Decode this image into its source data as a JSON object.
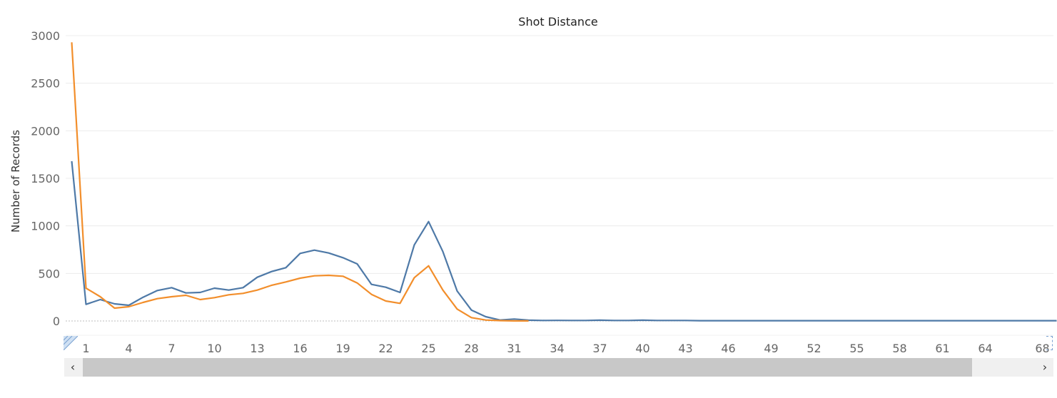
{
  "chart_data": {
    "type": "line",
    "title": "Shot Distance",
    "xlabel": "",
    "ylabel": "Number of Records",
    "ylim": [
      0,
      3000
    ],
    "yticks": [
      0,
      500,
      1000,
      1500,
      2000,
      2500,
      3000
    ],
    "xticks": [
      1,
      4,
      7,
      10,
      13,
      16,
      19,
      22,
      25,
      28,
      31,
      34,
      37,
      40,
      43,
      46,
      49,
      52,
      55,
      58,
      61,
      64,
      68
    ],
    "grid": true,
    "legend": "none",
    "series": [
      {
        "color": "#4e79a7",
        "x": [
          0,
          1,
          2,
          3,
          4,
          5,
          6,
          7,
          8,
          9,
          10,
          11,
          12,
          13,
          14,
          15,
          16,
          17,
          18,
          19,
          20,
          21,
          22,
          23,
          24,
          25,
          26,
          27,
          28,
          29,
          30,
          31,
          32,
          33,
          34,
          35,
          36,
          37,
          38,
          39,
          40,
          41,
          42,
          43,
          44,
          45,
          46,
          47,
          48,
          49,
          50,
          51,
          52,
          53,
          54,
          55,
          56,
          57,
          58,
          59,
          60,
          61,
          62,
          63,
          64,
          65,
          66,
          67,
          68,
          69
        ],
        "values": [
          1680,
          175,
          225,
          180,
          165,
          250,
          320,
          350,
          295,
          300,
          345,
          325,
          350,
          460,
          520,
          560,
          710,
          745,
          715,
          665,
          600,
          385,
          355,
          300,
          800,
          1045,
          730,
          315,
          115,
          45,
          10,
          20,
          8,
          5,
          6,
          5,
          5,
          8,
          5,
          5,
          8,
          5,
          5,
          5,
          3,
          3,
          3,
          3,
          3,
          3,
          3,
          3,
          3,
          3,
          3,
          3,
          3,
          3,
          3,
          3,
          3,
          3,
          3,
          3,
          3,
          3,
          3,
          3,
          3,
          3
        ]
      },
      {
        "color": "#f28e2b",
        "x": [
          0,
          1,
          2,
          3,
          4,
          5,
          6,
          7,
          8,
          9,
          10,
          11,
          12,
          13,
          14,
          15,
          16,
          17,
          18,
          19,
          20,
          21,
          22,
          23,
          24,
          25,
          26,
          27,
          28,
          29,
          30,
          31,
          32
        ],
        "values": [
          2930,
          345,
          255,
          135,
          150,
          195,
          235,
          255,
          270,
          225,
          245,
          275,
          290,
          325,
          375,
          410,
          450,
          475,
          480,
          470,
          400,
          280,
          210,
          185,
          455,
          580,
          325,
          125,
          35,
          10,
          4,
          1,
          1
        ]
      }
    ],
    "scrollbar": {
      "left_arrow": "‹",
      "right_arrow": "›"
    }
  }
}
